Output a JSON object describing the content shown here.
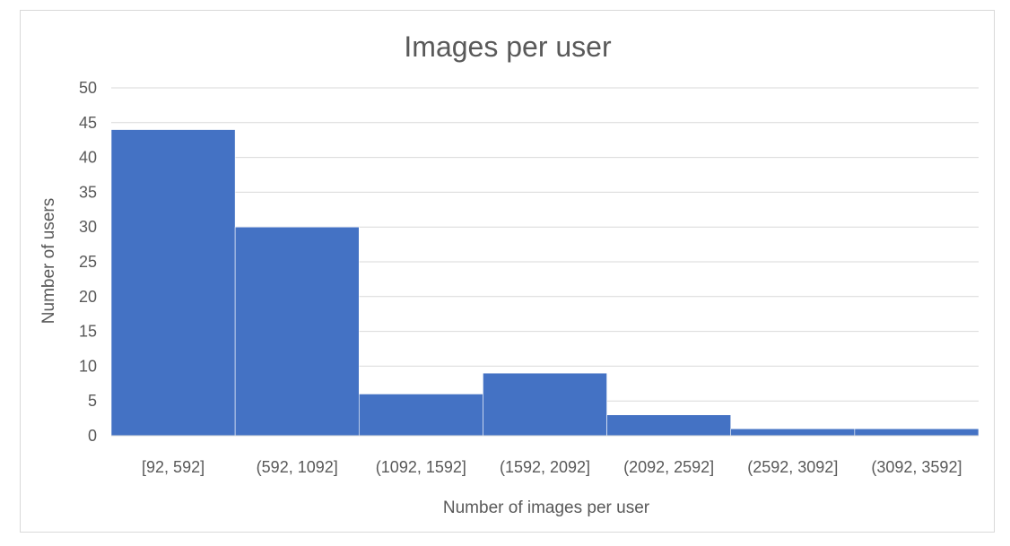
{
  "chart_data": {
    "type": "bar",
    "title": "Images per user",
    "xlabel": "Number of images per user",
    "ylabel": "Number of users",
    "categories": [
      "[92, 592]",
      "(592, 1092]",
      "(1092, 1592]",
      "(1592, 2092]",
      "(2092, 2592]",
      "(2592, 3092]",
      "(3092, 3592]"
    ],
    "values": [
      44,
      30,
      6,
      9,
      3,
      1,
      1
    ],
    "ylim": [
      0,
      50
    ],
    "yticks": [
      0,
      5,
      10,
      15,
      20,
      25,
      30,
      35,
      40,
      45,
      50
    ],
    "grid": true,
    "legend": "none",
    "bar_color": "#4472c4"
  }
}
